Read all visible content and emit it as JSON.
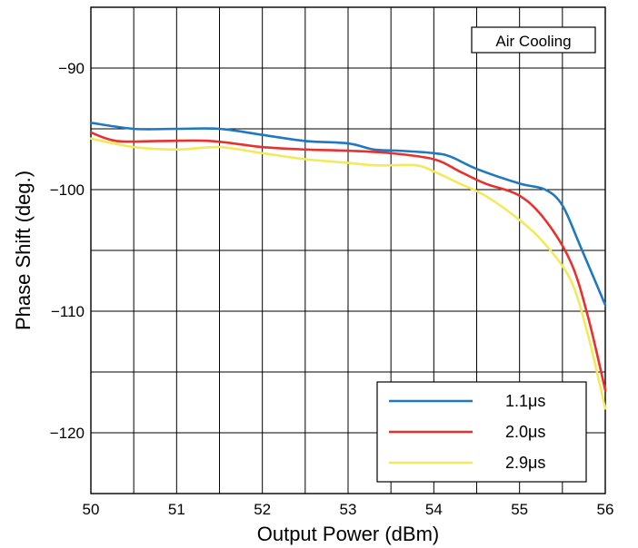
{
  "chart_data": {
    "type": "line",
    "title": "",
    "xlabel": "Output Power (dBm)",
    "ylabel": "Phase Shift (deg.)",
    "xlim": [
      50,
      56
    ],
    "ylim": [
      -125,
      -85
    ],
    "x_ticks": [
      50,
      51,
      52,
      53,
      54,
      55,
      56
    ],
    "y_ticks": [
      -90,
      -100,
      -110,
      -120
    ],
    "y_tick_labels": [
      "−90",
      "−100",
      "−110",
      "−120"
    ],
    "annotation": "Air Cooling",
    "grid": true,
    "legend_position": "bottom-right",
    "series": [
      {
        "name": "1.1μs",
        "color": "#1f78c1",
        "x": [
          50.0,
          50.5,
          51.0,
          51.5,
          52.0,
          52.5,
          53.0,
          53.3,
          53.6,
          54.0,
          54.2,
          54.5,
          55.0,
          55.3,
          55.5,
          55.7,
          56.0
        ],
        "y": [
          -94.5,
          -95.0,
          -95.0,
          -95.0,
          -95.5,
          -96.0,
          -96.2,
          -96.7,
          -96.8,
          -97.0,
          -97.3,
          -98.3,
          -99.5,
          -100.0,
          -101.3,
          -104.5,
          -109.5
        ]
      },
      {
        "name": "2.0μs",
        "color": "#e8312e",
        "x": [
          50.0,
          50.3,
          50.8,
          51.4,
          52.0,
          52.5,
          53.0,
          53.5,
          54.0,
          54.3,
          54.6,
          55.0,
          55.3,
          55.6,
          55.8,
          56.0
        ],
        "y": [
          -95.3,
          -96.0,
          -96.0,
          -96.0,
          -96.5,
          -96.7,
          -96.8,
          -97.0,
          -97.5,
          -98.5,
          -99.5,
          -100.5,
          -102.5,
          -106.0,
          -110.5,
          -116.5
        ]
      },
      {
        "name": "2.9μs",
        "color": "#f2ea5a",
        "x": [
          50.0,
          50.5,
          51.0,
          51.5,
          52.0,
          52.5,
          53.0,
          53.3,
          53.5,
          53.8,
          54.0,
          54.3,
          54.6,
          55.0,
          55.3,
          55.6,
          55.8,
          56.0
        ],
        "y": [
          -95.8,
          -96.5,
          -96.7,
          -96.5,
          -97.0,
          -97.5,
          -97.8,
          -98.0,
          -98.0,
          -98.0,
          -98.5,
          -99.5,
          -100.5,
          -102.5,
          -104.5,
          -107.5,
          -112.0,
          -118.0
        ]
      }
    ]
  }
}
